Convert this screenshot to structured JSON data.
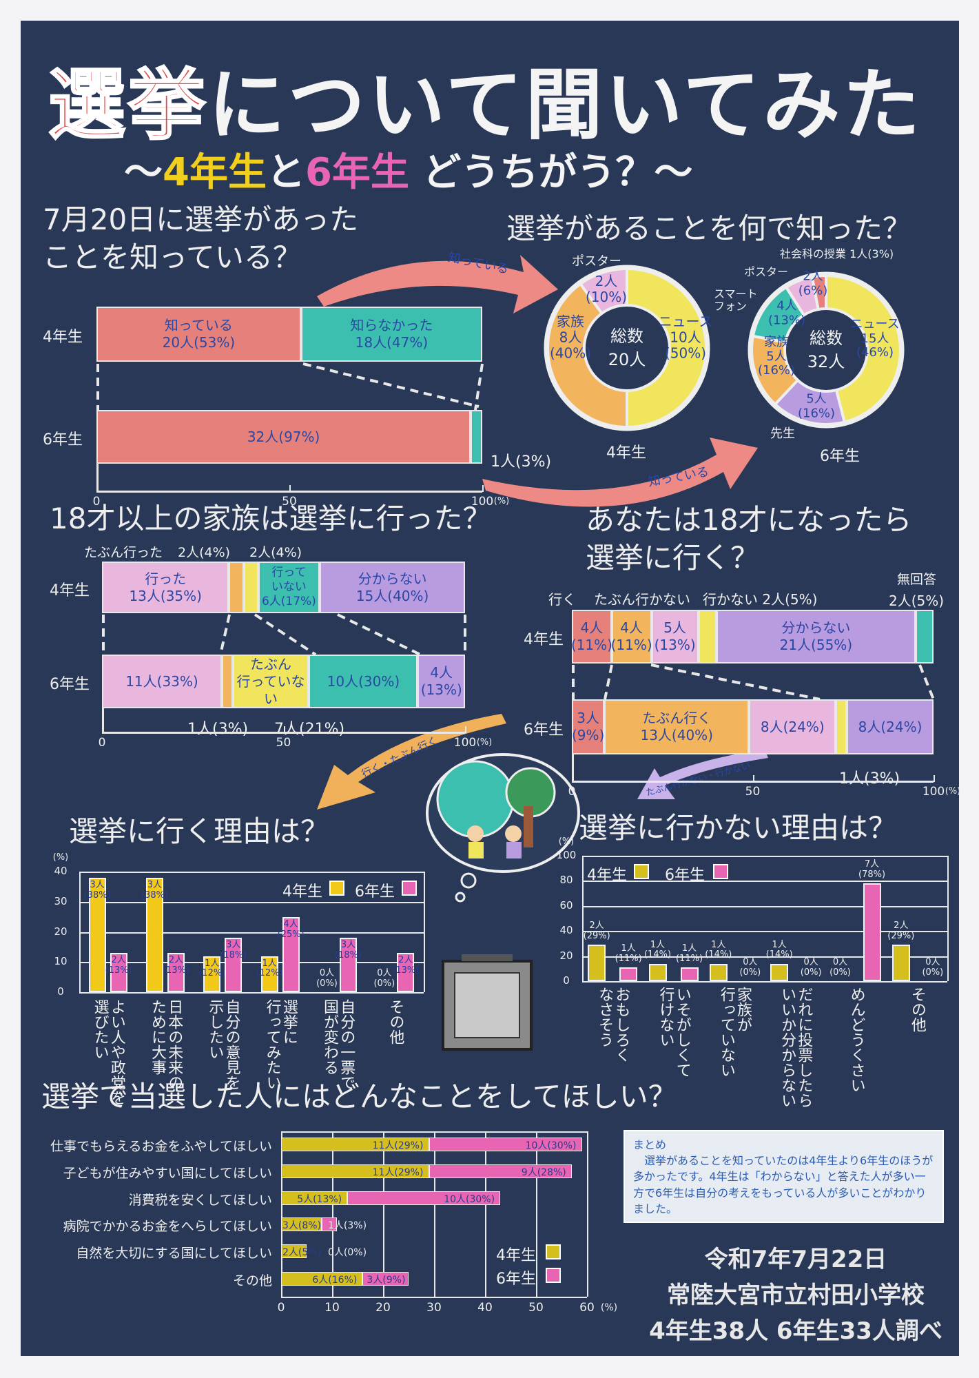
{
  "title": {
    "part1": "選挙",
    "part2": "について聞いてみた"
  },
  "subtitle": {
    "pre": "〜",
    "g4": "4年生",
    "to": "と",
    "g6": "6年生",
    "post": " どうちがう？〜"
  },
  "colors": {
    "background": "#283856",
    "red": "#e5817a",
    "teal": "#3cbfae",
    "pink": "#e9b6de",
    "orange": "#f2b45c",
    "yellow": "#f0e55c",
    "purple": "#b99be0",
    "grade4": "#d4bf1e",
    "grade6": "#e865b4",
    "title_red": "#e0494a"
  },
  "arrows": {
    "knew_top": "知っている",
    "knew_bottom": "知っている",
    "go": "行く・たぶん行く",
    "not_go": "たぶん行かない・行かない"
  },
  "chart_data": [
    {
      "type": "bar",
      "orientation": "horizontal",
      "stacked": true,
      "title": "7月20日に選挙があった\nことを知っている？",
      "xlim": [
        0,
        100
      ],
      "xticks": [
        "0",
        "50",
        "100"
      ],
      "xunit": "(%)",
      "rows": [
        {
          "label": "4年生",
          "segments": [
            {
              "name": "知っている",
              "value": 53,
              "text": "知っている\n20人(53%)",
              "color": "#e5817a"
            },
            {
              "name": "知らなかった",
              "value": 47,
              "text": "知らなかった\n18人(47%)",
              "color": "#3cbfae"
            }
          ]
        },
        {
          "label": "6年生",
          "segments": [
            {
              "name": "知っている",
              "value": 97,
              "text": "32人(97%)",
              "color": "#e5817a"
            },
            {
              "name": "知らなかった",
              "value": 3,
              "text": "",
              "color": "#3cbfae"
            }
          ]
        }
      ],
      "callouts": [
        "1人(3%)"
      ]
    },
    {
      "type": "pie",
      "donut": true,
      "title": "選挙があることを何で知った？",
      "group": "4年生",
      "center_label": "総数",
      "total": "20人",
      "slices": [
        {
          "name": "ニュース",
          "value": 50,
          "text": "ニュース\n10人\n(50%)",
          "color": "#f0e55c"
        },
        {
          "name": "家族",
          "value": 40,
          "text": "家族\n8人\n(40%)",
          "color": "#f2b45c"
        },
        {
          "name": "ポスター",
          "value": 10,
          "text": "2人\n(10%)",
          "color": "#e9b6de"
        }
      ],
      "outside_labels": [
        "ポスター"
      ]
    },
    {
      "type": "pie",
      "donut": true,
      "group": "6年生",
      "center_label": "総数",
      "total": "32人",
      "slices": [
        {
          "name": "ニュース",
          "value": 46,
          "text": "ニュース\n15人\n(46%)",
          "color": "#f0e55c"
        },
        {
          "name": "先生",
          "value": 16,
          "text": "5人\n(16%)",
          "color": "#b99be0"
        },
        {
          "name": "家族",
          "value": 16,
          "text": "家族\n5人\n(16%)",
          "color": "#f2b45c"
        },
        {
          "name": "スマートフォン",
          "value": 13,
          "text": "4人\n(13%)",
          "color": "#3cbfae"
        },
        {
          "name": "ポスター",
          "value": 6,
          "text": "2人\n(6%)",
          "color": "#e9b6de"
        },
        {
          "name": "社会科の授業",
          "value": 3,
          "text": "",
          "color": "#e5817a"
        }
      ],
      "outside_labels": [
        "先生",
        "スマート\nフォン",
        "ポスター",
        "社会科の授業 1人(3%)"
      ]
    },
    {
      "type": "bar",
      "orientation": "horizontal",
      "stacked": true,
      "title": "18才以上の家族は選挙に行った？",
      "xlim": [
        0,
        100
      ],
      "xticks": [
        "0",
        "50",
        "100"
      ],
      "xunit": "(%)",
      "rows": [
        {
          "label": "4年生",
          "segments": [
            {
              "name": "行った",
              "value": 35,
              "text": "行った\n13人(35%)",
              "color": "#e9b6de"
            },
            {
              "name": "たぶん行った",
              "value": 4,
              "text": "",
              "color": "#f2b45c"
            },
            {
              "name": "たぶん行っていない",
              "value": 4,
              "text": "",
              "color": "#f0e55c"
            },
            {
              "name": "行っていない",
              "value": 17,
              "text": "行って\nいない\n6人(17%)",
              "color": "#3cbfae"
            },
            {
              "name": "分からない",
              "value": 40,
              "text": "分からない\n15人(40%)",
              "color": "#b99be0"
            }
          ]
        },
        {
          "label": "6年生",
          "segments": [
            {
              "name": "行った",
              "value": 33,
              "text": "11人(33%)",
              "color": "#e9b6de"
            },
            {
              "name": "たぶん行った",
              "value": 3,
              "text": "",
              "color": "#f2b45c"
            },
            {
              "name": "たぶん行っていない",
              "value": 21,
              "text": "たぶん\n行っていない",
              "color": "#f0e55c"
            },
            {
              "name": "行っていない",
              "value": 30,
              "text": "10人(30%)",
              "color": "#3cbfae"
            },
            {
              "name": "分からない",
              "value": 13,
              "text": "4人\n(13%)",
              "color": "#b99be0"
            }
          ]
        }
      ],
      "callouts": [
        "たぶん行った",
        "2人(4%)",
        "2人(4%)",
        "1人(3%)",
        "7人(21%)"
      ]
    },
    {
      "type": "bar",
      "orientation": "horizontal",
      "stacked": true,
      "title": "あなたは18才になったら\n選挙に行く？",
      "xlim": [
        0,
        100
      ],
      "xticks": [
        "0",
        "50",
        "100"
      ],
      "xunit": "(%)",
      "rows": [
        {
          "label": "4年生",
          "segments": [
            {
              "name": "行く",
              "value": 11,
              "text": "4人\n(11%)",
              "color": "#e5817a"
            },
            {
              "name": "たぶん行く",
              "value": 11,
              "text": "4人\n(11%)",
              "color": "#f2b45c"
            },
            {
              "name": "たぶん行かない",
              "value": 13,
              "text": "5人\n(13%)",
              "color": "#e9b6de"
            },
            {
              "name": "行かない",
              "value": 5,
              "text": "",
              "color": "#f0e55c"
            },
            {
              "name": "分からない",
              "value": 55,
              "text": "分からない\n21人(55%)",
              "color": "#b99be0"
            },
            {
              "name": "無回答",
              "value": 5,
              "text": "",
              "color": "#3cbfae"
            }
          ]
        },
        {
          "label": "6年生",
          "segments": [
            {
              "name": "行く",
              "value": 9,
              "text": "3人\n(9%)",
              "color": "#e5817a"
            },
            {
              "name": "たぶん行く",
              "value": 40,
              "text": "たぶん行く\n13人(40%)",
              "color": "#f2b45c"
            },
            {
              "name": "たぶん行かない",
              "value": 24,
              "text": "8人(24%)",
              "color": "#e9b6de"
            },
            {
              "name": "行かない",
              "value": 3,
              "text": "",
              "color": "#f0e55c"
            },
            {
              "name": "分からない",
              "value": 24,
              "text": "8人(24%)",
              "color": "#b99be0"
            }
          ]
        }
      ],
      "callouts": [
        "行く",
        "たぶん行かない",
        "行かない 2人(5%)",
        "無回答",
        "2人(5%)",
        "1人(3%)"
      ]
    },
    {
      "type": "bar",
      "title": "選挙に行く理由は？",
      "ylabel": "(%)",
      "ylim": [
        0,
        40
      ],
      "yticks": [
        "0",
        "10",
        "20",
        "30",
        "40"
      ],
      "categories": [
        "よい人や政党を\n選びたい",
        "日本の未来の\nために大事",
        "自分の意見を\n示したい",
        "選挙に\n行ってみたい",
        "自分の一票で\n国が変わる",
        "その他"
      ],
      "series": [
        {
          "name": "4年生",
          "color": "#f2c919",
          "values": [
            38,
            38,
            12,
            12,
            0,
            0
          ],
          "labels": [
            "3人\n(38%)",
            "3人\n(38%)",
            "1人\n(12%)",
            "1人\n(12%)",
            "0人\n(0%)",
            "0人\n(0%)"
          ]
        },
        {
          "name": "6年生",
          "color": "#e865b4",
          "values": [
            13,
            13,
            18,
            25,
            18,
            13
          ],
          "labels": [
            "2人\n(13%)",
            "2人\n(13%)",
            "3人\n(18%)",
            "4人\n(25%)",
            "3人\n(18%)",
            "2人\n(13%)"
          ]
        }
      ],
      "legend": "top-right"
    },
    {
      "type": "bar",
      "title": "選挙に行かない理由は？",
      "ylabel": "(%)",
      "ylim": [
        0,
        100
      ],
      "yticks": [
        "0",
        "20",
        "40",
        "60",
        "80",
        "100"
      ],
      "categories": [
        "おもしろく\nなさそう",
        "いそがしくて\n行けない",
        "家族が\n行っていない",
        "だれに投票したら\nいいか分からない",
        "めんどうくさい",
        "その他"
      ],
      "series": [
        {
          "name": "4年生",
          "color": "#d4bf1e",
          "values": [
            29,
            14,
            14,
            14,
            0,
            29
          ],
          "labels": [
            "2人\n(29%)",
            "1人\n(14%)",
            "1人\n(14%)",
            "1人\n(14%)",
            "0人\n(0%)",
            "2人\n(29%)"
          ]
        },
        {
          "name": "6年生",
          "color": "#e865b4",
          "values": [
            11,
            11,
            0,
            0,
            78,
            0
          ],
          "labels": [
            "1人\n(11%)",
            "1人\n(11%)",
            "0人\n(0%)",
            "0人\n(0%)",
            "7人\n(78%)",
            "0人\n(0%)"
          ]
        }
      ],
      "legend": "top-left"
    },
    {
      "type": "bar",
      "orientation": "horizontal",
      "stacked": true,
      "title": "選挙で当選した人にはどんなことをしてほしい？",
      "xlim": [
        0,
        60
      ],
      "xticks": [
        "0",
        "10",
        "20",
        "30",
        "40",
        "50",
        "60"
      ],
      "xunit": "(%)",
      "categories": [
        "仕事でもらえるお金をふやしてほしい",
        "子どもが住みやすい国にしてほしい",
        "消費税を安くしてほしい",
        "病院でかかるお金をへらしてほしい",
        "自然を大切にする国にしてほしい",
        "その他"
      ],
      "series": [
        {
          "name": "4年生",
          "color": "#d4bf1e",
          "values": [
            29,
            29,
            13,
            8,
            5,
            16
          ],
          "labels": [
            "11人(29%)",
            "11人(29%)",
            "5人(13%)",
            "3人(8%)",
            "2人(5%)",
            "6人(16%)"
          ]
        },
        {
          "name": "6年生",
          "color": "#e865b4",
          "values": [
            30,
            28,
            30,
            3,
            0,
            9
          ],
          "labels": [
            "10人(30%)",
            "9人(28%)",
            "10人(30%)",
            "1人(3%)",
            "0人(0%)",
            "3人(9%)"
          ]
        }
      ],
      "legend": "bottom-right"
    }
  ],
  "summary": {
    "heading": "まとめ",
    "text": "　選挙があることを知っていたのは4年生より6年生のほうが多かったです。4年生は「わからない」と答えた人が多い一方で6年生は自分の考えをもっている人が多いことがわかりました。"
  },
  "footer": {
    "date": "令和7年7月22日",
    "school": "常陸大宮市立村田小学校",
    "survey": "4年生38人 6年生33人調べ"
  }
}
